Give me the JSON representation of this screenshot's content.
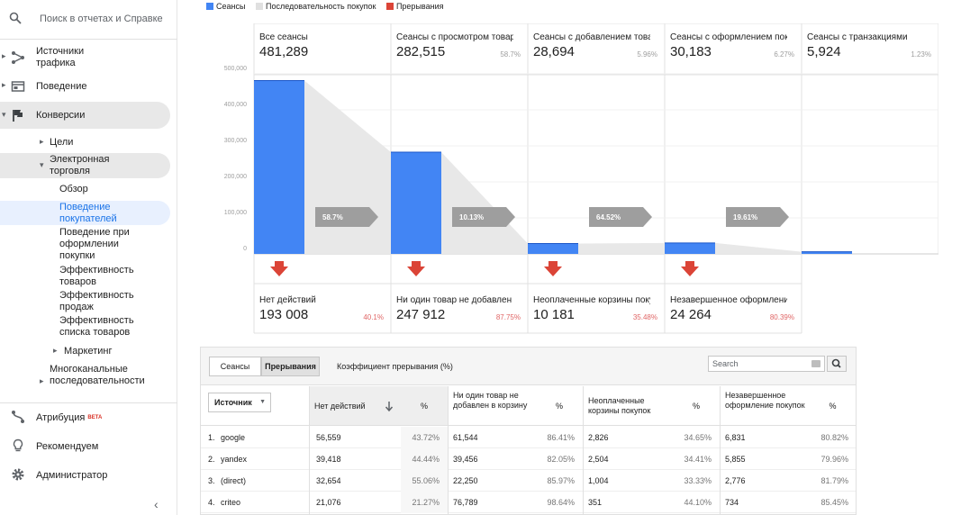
{
  "sidebar": {
    "search_placeholder": "Поиск в отчетах и Справке",
    "items": [
      {
        "label": "Источники трафика",
        "icon": "traffic-sources-icon"
      },
      {
        "label": "Поведение",
        "icon": "behavior-icon"
      },
      {
        "label": "Конверсии",
        "icon": "flag-icon"
      }
    ],
    "conversions": {
      "goals": "Цели",
      "ecommerce": "Электронная торговля",
      "ecommerce_items": [
        "Обзор",
        "Поведение покупателей",
        "Поведение при оформлении покупки",
        "Эффективность товаров",
        "Эффективность продаж",
        "Эффективность списка товаров"
      ],
      "marketing": "Маркетинг",
      "multichannel": "Многоканальные последовательности"
    },
    "bottom": [
      {
        "label": "Атрибуция",
        "badge": "BETA",
        "icon": "attribution-icon"
      },
      {
        "label": "Рекомендуем",
        "icon": "lightbulb-icon"
      },
      {
        "label": "Администратор",
        "icon": "gear-icon"
      }
    ],
    "collapse": "‹"
  },
  "legend": [
    {
      "label": "Сеансы",
      "color": "#4285f4"
    },
    {
      "label": "Последовательность покупок",
      "color": "#e0e0e0"
    },
    {
      "label": "Прерывания",
      "color": "#db4437"
    }
  ],
  "funnel": {
    "y_ticks": [
      "500,000",
      "400,000",
      "300,000",
      "200,000",
      "100,000",
      "0"
    ],
    "stages": [
      {
        "title": "Все сеансы",
        "value": "481,289",
        "pct": ""
      },
      {
        "title": "Сеансы с просмотром товара",
        "value": "282,515",
        "pct": "58.7%"
      },
      {
        "title": "Сеансы с добавлением товара в корзину",
        "value": "28,694",
        "pct": "5.96%"
      },
      {
        "title": "Сеансы с оформлением покупки",
        "value": "30,183",
        "pct": "6.27%"
      },
      {
        "title": "Сеансы с транзакциями",
        "value": "5,924",
        "pct": "1.23%"
      }
    ],
    "session_values": [
      481289,
      282515,
      28694,
      30183,
      5924
    ],
    "arrows": [
      "58.7%",
      "10.13%",
      "64.52%",
      "19.61%"
    ],
    "abandons": [
      {
        "title": "Нет действий",
        "value": "193 008",
        "pct": "40.1%"
      },
      {
        "title": "Ни один товар не добавлен в корзину",
        "value": "247 912",
        "pct": "87.75%"
      },
      {
        "title": "Неоплаченные корзины покупок",
        "value": "10 181",
        "pct": "35.48%"
      },
      {
        "title": "Незавершенное оформление покупки",
        "value": "24 264",
        "pct": "80.39%"
      }
    ],
    "colors": {
      "session": "#4285f4",
      "flow": "#e8e8e8",
      "abandon": "#db4437",
      "arrow": "#9e9e9e"
    }
  },
  "table": {
    "tab_sessions": "Сеансы",
    "tab_abandons": "Прерывания",
    "ratio_label": "Коэффициент прерывания (%)",
    "search_placeholder": "Search",
    "source_dropdown": "Источник",
    "headers": [
      "Нет действий",
      "%",
      "Ни один товар не добавлен в корзину",
      "%",
      "Неоплаченные корзины покупок",
      "%",
      "Незавершенное оформление покупок",
      "%"
    ],
    "rows": [
      {
        "n": "1.",
        "src": "google",
        "c1": "56,559",
        "p1": "43.72%",
        "c2": "61,544",
        "p2": "86.41%",
        "c3": "2,826",
        "p3": "34.65%",
        "c4": "6,831",
        "p4": "80.82%"
      },
      {
        "n": "2.",
        "src": "yandex",
        "c1": "39,418",
        "p1": "44.44%",
        "c2": "39,456",
        "p2": "82.05%",
        "c3": "2,504",
        "p3": "34.41%",
        "c4": "5,855",
        "p4": "79.96%"
      },
      {
        "n": "3.",
        "src": "(direct)",
        "c1": "32,654",
        "p1": "55.06%",
        "c2": "22,250",
        "p2": "85.97%",
        "c3": "1,004",
        "p3": "33.33%",
        "c4": "2,776",
        "p4": "81.79%"
      },
      {
        "n": "4.",
        "src": "criteo",
        "c1": "21,076",
        "p1": "21.27%",
        "c2": "76,789",
        "p2": "98.64%",
        "c3": "351",
        "p3": "44.10%",
        "c4": "734",
        "p4": "85.45%"
      }
    ]
  }
}
